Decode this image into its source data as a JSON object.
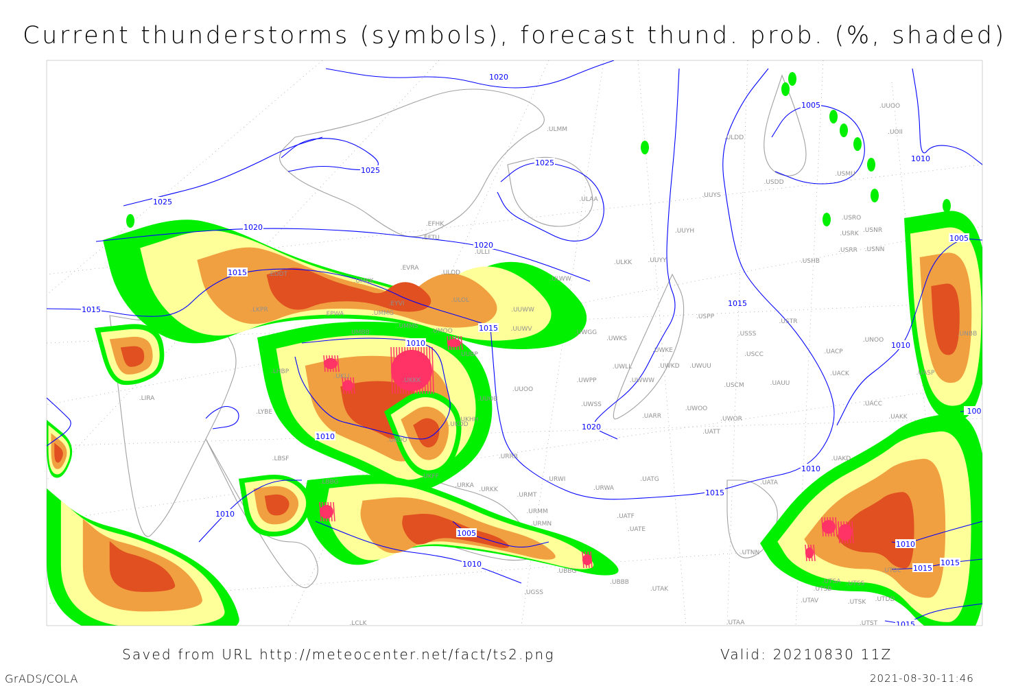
{
  "title": "Current thunderstorms (symbols), forecast thund. prob. (%, shaded)",
  "footer": {
    "saved": "Saved from URL http://meteocenter.net/fact/ts2.png",
    "valid": "Valid: 20210830 11Z",
    "software": "GrADS/COLA",
    "timestamp": "2021-08-30-11:46"
  },
  "colors": {
    "prob_low": "#00f000",
    "prob_mid": "#ffff99",
    "prob_high": "#f0a040",
    "prob_max": "#e05020",
    "thunderstorm_symbol": "#ff3366",
    "isobar": "#0000ff",
    "coastline": "#a0a0a0",
    "station_label": "#909090"
  },
  "isobar_labels": [
    "1020",
    "1025",
    "1025",
    "1025",
    "1020",
    "1020",
    "1015",
    "1015",
    "1015",
    "1010",
    "1010",
    "1020",
    "1015",
    "1015",
    "1005",
    "1010",
    "1010",
    "1005",
    "1005",
    "1010",
    "1010",
    "1010",
    "1010",
    "1015",
    "1015",
    "1015",
    "100"
  ],
  "stations": [
    "ULMM",
    "ULDD",
    "UUOO",
    "UOII",
    "USDD",
    "USMU",
    "ULAA",
    "UUYS",
    "EFHK",
    "EFTU",
    "USRO",
    "USRK",
    "USNR",
    "USRR",
    "USNN",
    "USHB",
    "UUYH",
    "ULLI",
    "ULKK",
    "UUYY",
    "EVRA",
    "ULOD",
    "ULWW",
    "UMKK",
    "EDDT",
    "EYVI",
    "ULOL",
    "LKPR",
    "EPWA",
    "UMMG",
    "UUWW",
    "UMMS",
    "UMOO",
    "UMBB",
    "UUBP",
    "UUWV",
    "UWGG",
    "UWKS",
    "USSS",
    "USTR",
    "USPP",
    "UNOO",
    "UNBB",
    "UWKE",
    "UWKD",
    "UWUU",
    "USCC",
    "UACP",
    "UACK",
    "UASP",
    "UWLL",
    "UWWW",
    "UWPP",
    "UUOO",
    "UUOB",
    "USCM",
    "UAUU",
    "UWSS",
    "UARR",
    "UWOO",
    "UWOR",
    "UATT",
    "UACC",
    "UAKK",
    "LHBP",
    "LIRA",
    "LYBE",
    "UKKK",
    "UKLI",
    "UKHH",
    "UKDD",
    "UKOO",
    "UKFF",
    "URKK",
    "URKA",
    "URMT",
    "URMM",
    "URMN",
    "URWI",
    "URWA",
    "URRR",
    "LBSF",
    "LBBG",
    "UATG",
    "UATF",
    "UATE",
    "UATA",
    "UAKD",
    "UBBB",
    "UBBG",
    "UTAK",
    "UTSA",
    "UTSB",
    "UTSS",
    "UTAV",
    "UTSK",
    "UTDD",
    "UTAA",
    "UTNN",
    "UTST",
    "LCLK",
    "UGSS",
    "UTDL"
  ]
}
